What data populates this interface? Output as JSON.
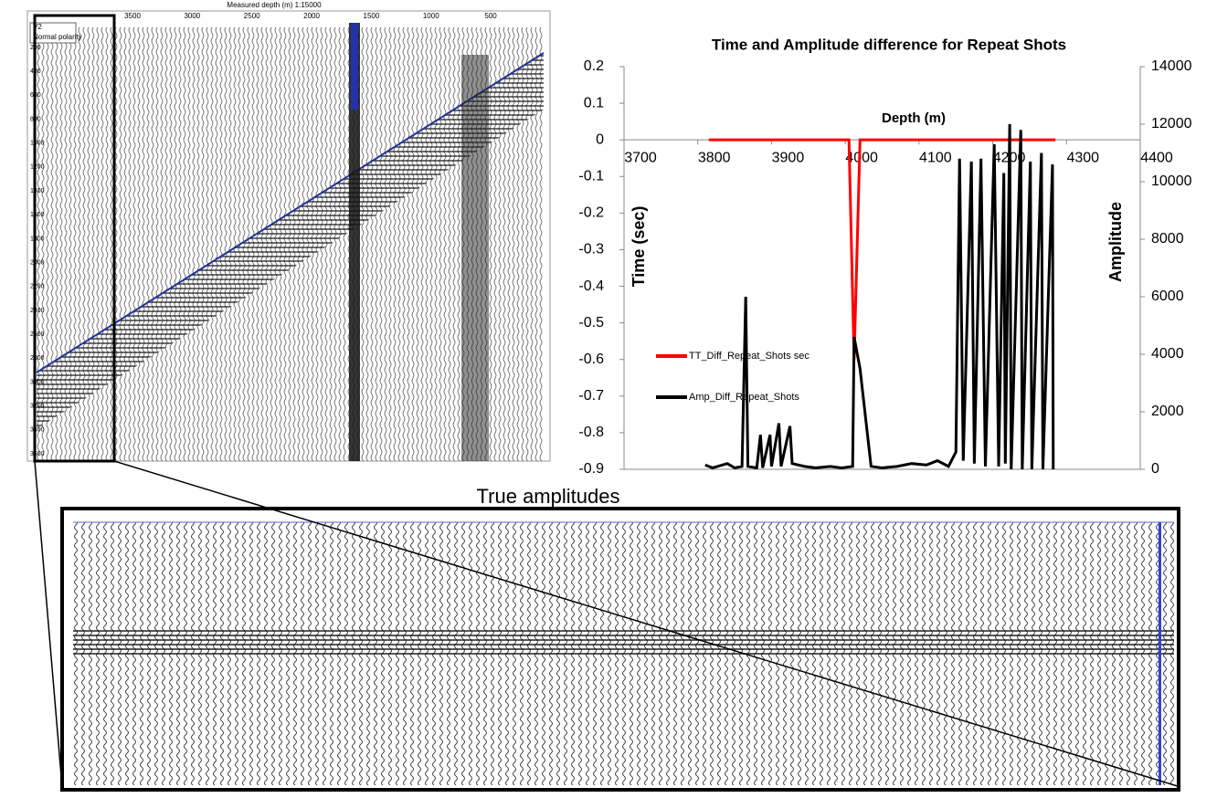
{
  "seismic_panel": {
    "title": "Measured depth (m)  1:15000",
    "depth_ticks": [
      3500,
      3000,
      2500,
      2000,
      1500,
      1000,
      500
    ],
    "time_ticks": [
      200,
      400,
      600,
      800,
      1000,
      1200,
      1400,
      1600,
      1800,
      2000,
      2200,
      2400,
      2600,
      2800,
      3000,
      3200,
      3400,
      3600
    ],
    "legend": [
      "V2",
      "Normal polarity"
    ]
  },
  "zoom_panel": {
    "title": "True amplitudes"
  },
  "chart_data": {
    "type": "line",
    "title": "Time and Amplitude difference  for Repeat Shots",
    "x_label": "Depth (m)",
    "y_label": "Time  (sec)",
    "y2_label": "Amplitude",
    "xlim": [
      3700,
      4400
    ],
    "xticks": [
      3700,
      3800,
      3900,
      4000,
      4100,
      4200,
      4300,
      4400
    ],
    "ylim": [
      -0.9,
      0.2
    ],
    "yticks": [
      -0.9,
      -0.8,
      -0.7,
      -0.6,
      -0.5,
      -0.4,
      -0.3,
      -0.2,
      -0.1,
      0,
      0.1,
      0.2
    ],
    "y2lim": [
      0,
      14000
    ],
    "y2ticks": [
      0,
      2000,
      4000,
      6000,
      8000,
      10000,
      12000,
      14000
    ],
    "series": [
      {
        "name": "TT_Diff_Repeat_Shots sec",
        "color": "#ff0000",
        "x": [
          3815,
          4005,
          4012,
          4020,
          4285
        ],
        "values": [
          0,
          0,
          -0.6,
          0,
          0
        ]
      },
      {
        "name": "Amp_Diff_Repeat_Shots",
        "color": "#000000",
        "axis": "y2",
        "x": [
          3810,
          3820,
          3840,
          3850,
          3860,
          3865,
          3868,
          3880,
          3885,
          3888,
          3898,
          3900,
          3910,
          3913,
          3925,
          3928,
          3945,
          3960,
          3980,
          3995,
          4010,
          4012,
          4020,
          4035,
          4050,
          4070,
          4090,
          4110,
          4125,
          4140,
          4150,
          4155,
          4160,
          4171,
          4175,
          4184,
          4190,
          4202,
          4208,
          4215,
          4217,
          4223,
          4225,
          4238,
          4240,
          4251,
          4253,
          4266,
          4268,
          4281,
          4282
        ],
        "values": [
          150,
          50,
          200,
          50,
          100,
          6000,
          100,
          50,
          1200,
          50,
          1200,
          100,
          1600,
          100,
          1500,
          200,
          100,
          50,
          100,
          50,
          100,
          4600,
          3500,
          100,
          50,
          100,
          200,
          150,
          300,
          100,
          600,
          10800,
          300,
          10700,
          200,
          10800,
          100,
          11300,
          100,
          10300,
          200,
          12000,
          0,
          11800,
          0,
          10700,
          0,
          11000,
          0,
          10600,
          0
        ]
      }
    ]
  }
}
